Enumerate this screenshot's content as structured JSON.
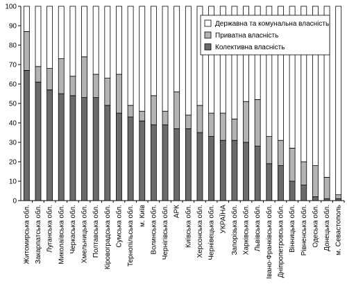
{
  "chart_data": {
    "type": "bar",
    "stacked": true,
    "percent_stacked": true,
    "ylim": [
      0,
      100
    ],
    "yticks": [
      0,
      10,
      20,
      30,
      40,
      50,
      60,
      70,
      80,
      90,
      100
    ],
    "grid": false,
    "legend_position": "top-right",
    "categories": [
      "Житомирська обл.",
      "Закарпатська обл.",
      "Луганська обл.",
      "Миколаївська обл.",
      "Черкаська обл.",
      "Хмельницька обл.",
      "Полтавська обл.",
      "Кіровоградська обл.",
      "Сумська обл.",
      "Тернопільська обл.",
      "м. Київ",
      "Волинська обл.",
      "Чернігівська обл.",
      "АРК",
      "Київська обл.",
      "Херсонська обл.",
      "Чернівецька обл.",
      "УКРАЇНА",
      "Запорізька обл.",
      "Харківська обл.",
      "Львівська обл.",
      "Івано-Франківська обл.",
      "Дніпропетровська обл.",
      "Вінницька обл.",
      "Рівненська обл.",
      "Одеська обл.",
      "Донецька обл.",
      "м. Севастополь"
    ],
    "series": [
      {
        "name": "Колективна власність",
        "color": "#6b6b6b",
        "values": [
          67,
          61,
          57,
          55,
          54,
          53,
          53,
          49,
          45,
          43,
          41,
          39,
          39,
          37,
          37,
          35,
          33,
          31,
          31,
          30,
          28,
          19,
          18,
          10,
          8,
          2,
          1,
          1
        ]
      },
      {
        "name": "Приватна власність",
        "color": "#b3b3b3",
        "values": [
          20,
          8,
          11,
          18,
          10,
          21,
          12,
          14,
          20,
          6,
          5,
          15,
          7,
          19,
          7,
          14,
          12,
          14,
          11,
          21,
          24,
          14,
          13,
          17,
          12,
          16,
          11,
          2
        ]
      },
      {
        "name": "Державна та комунальна власність",
        "color": "#ffffff",
        "values": [
          13,
          31,
          32,
          27,
          36,
          26,
          35,
          37,
          35,
          51,
          54,
          46,
          54,
          44,
          56,
          51,
          55,
          55,
          58,
          49,
          48,
          67,
          69,
          73,
          80,
          82,
          88,
          97
        ]
      }
    ],
    "legend_order": [
      "Державна та комунальна власність",
      "Приватна власність",
      "Колективна власність"
    ]
  }
}
